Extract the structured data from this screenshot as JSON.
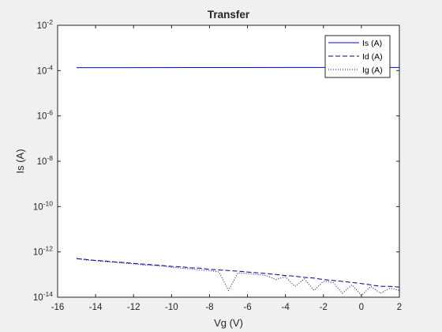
{
  "chart_data": {
    "type": "line",
    "title": "Transfer",
    "xlabel": "Vg (V)",
    "ylabel": "Is (A)",
    "xlim": [
      -16,
      2
    ],
    "ylim": [
      1e-14,
      0.01
    ],
    "yscale": "log",
    "grid": false,
    "legend_position": "top-right",
    "x_ticks": [
      "-16",
      "-14",
      "-12",
      "-10",
      "-8",
      "-6",
      "-4",
      "-2",
      "0",
      "2"
    ],
    "x_tick_values": [
      -16,
      -14,
      -12,
      -10,
      -8,
      -6,
      -4,
      -2,
      0,
      2
    ],
    "y_ticks": [
      {
        "base": "10",
        "exp": "-14",
        "value": 1e-14
      },
      {
        "base": "10",
        "exp": "-12",
        "value": 1e-12
      },
      {
        "base": "10",
        "exp": "-10",
        "value": 1e-10
      },
      {
        "base": "10",
        "exp": "-8",
        "value": 1e-08
      },
      {
        "base": "10",
        "exp": "-6",
        "value": 1e-06
      },
      {
        "base": "10",
        "exp": "-4",
        "value": 0.0001
      },
      {
        "base": "10",
        "exp": "-2",
        "value": 0.01
      }
    ],
    "series": [
      {
        "name": "Is (A)",
        "style": "solid",
        "color": "#0000ff",
        "x": [
          -15,
          -12,
          -9,
          -6,
          -3,
          0,
          2
        ],
        "y": [
          0.000135,
          0.000135,
          0.000136,
          0.000136,
          0.000137,
          0.000137,
          0.000137
        ]
      },
      {
        "name": "Id (A)",
        "style": "dashed",
        "color": "#00008b",
        "x": [
          -15,
          -14.5,
          -14,
          -13.5,
          -13,
          -12.5,
          -12,
          -11.5,
          -11,
          -10.5,
          -10,
          -9.5,
          -9,
          -8.5,
          -8,
          -7.5,
          -7,
          -6.5,
          -6,
          -5.5,
          -5,
          -4.5,
          -4,
          -3.5,
          -3,
          -2.5,
          -2,
          -1.5,
          -1,
          -0.5,
          0,
          0.5,
          1,
          1.5,
          2
        ],
        "y": [
          5e-13,
          4.6e-13,
          4.2e-13,
          4e-13,
          3.6e-13,
          3.4e-13,
          3.1e-13,
          2.9e-13,
          2.7e-13,
          2.5e-13,
          2.3e-13,
          2.2e-13,
          2e-13,
          1.9e-13,
          1.7e-13,
          1.6e-13,
          1.5e-13,
          1.4e-13,
          1.3e-13,
          1.2e-13,
          1.1e-13,
          1e-13,
          9e-14,
          8.5e-14,
          7.5e-14,
          7e-14,
          6e-14,
          5.5e-14,
          5e-14,
          4.5e-14,
          4e-14,
          3.5e-14,
          3e-14,
          3e-14,
          2.8e-14
        ]
      },
      {
        "name": "Ig (A)",
        "style": "dotted",
        "color": "#00008b",
        "x": [
          -15,
          -14.5,
          -14,
          -13.5,
          -13,
          -12.5,
          -12,
          -11.5,
          -11,
          -10.5,
          -10,
          -9.5,
          -9,
          -8.5,
          -8,
          -7.5,
          -7,
          -6.5,
          -6,
          -5.5,
          -5,
          -4.5,
          -4,
          -3.5,
          -3,
          -2.5,
          -2,
          -1.5,
          -1,
          -0.5,
          0,
          0.5,
          1,
          1.5,
          2
        ],
        "y": [
          5.2e-13,
          4.4e-13,
          4.1e-13,
          3.7e-13,
          3.5e-13,
          3.2e-13,
          3e-13,
          2.6e-13,
          2.5e-13,
          2.4e-13,
          2.1e-13,
          1.9e-13,
          1.8e-13,
          1.6e-13,
          1.5e-13,
          1.3e-13,
          2e-14,
          1.2e-13,
          1.1e-13,
          1e-13,
          9e-14,
          6e-14,
          8e-14,
          3e-14,
          6.5e-14,
          2e-14,
          5e-14,
          4.5e-14,
          1.5e-14,
          3.5e-14,
          1.2e-14,
          3e-14,
          1.5e-14,
          2.5e-14,
          2e-14
        ]
      }
    ]
  }
}
